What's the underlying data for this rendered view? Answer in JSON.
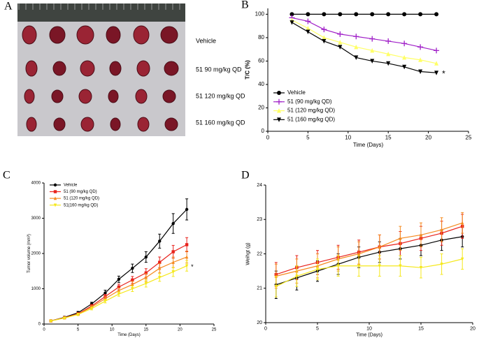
{
  "photo": {
    "panel": "A",
    "labels": [
      "Vehicle",
      "51 90 mg/kg QD",
      "51 120 mg/kg QD",
      "51 160 mg/kg QD"
    ]
  },
  "chart_data": [
    {
      "type": "line",
      "panel": "B",
      "xlabel": "Time (Days)",
      "ylabel": "T/C (%)",
      "x": [
        3,
        5,
        7,
        9,
        11,
        13,
        15,
        17,
        19,
        21
      ],
      "xlim": [
        0,
        25
      ],
      "xticks": [
        0,
        5,
        10,
        15,
        20,
        25
      ],
      "ylim": [
        0,
        105
      ],
      "yticks": [
        0,
        20,
        40,
        60,
        80,
        100
      ],
      "legend": "lower left",
      "annotation": "*",
      "series": [
        {
          "name": "Vehicle",
          "color": "#000000",
          "marker": "circle",
          "values": [
            100,
            100,
            100,
            100,
            100,
            100,
            100,
            100,
            100,
            100
          ]
        },
        {
          "name": "51 (90 mg/kg QD)",
          "color": "#a020c8",
          "marker": "plus",
          "values": [
            97,
            94,
            87,
            83,
            81,
            79,
            77,
            75,
            72,
            69
          ]
        },
        {
          "name": "51 (120 mg/kg QD)",
          "color": "#ffff66",
          "marker": "triangle-up",
          "values": [
            95,
            88,
            80,
            76,
            72,
            69,
            66,
            63,
            61,
            58
          ]
        },
        {
          "name": "51 (160 mg/kg QD)",
          "color": "#000000",
          "marker": "triangle-down",
          "values": [
            93,
            85,
            77,
            72,
            63,
            60,
            58,
            55,
            51,
            50
          ]
        }
      ]
    },
    {
      "type": "line",
      "panel": "C",
      "xlabel": "Time (Days)",
      "ylabel": "Tumor volume (mm³)",
      "x": [
        1,
        3,
        5,
        7,
        9,
        11,
        13,
        15,
        17,
        19,
        21
      ],
      "xlim": [
        0,
        25
      ],
      "xticks": [
        0,
        5,
        10,
        15,
        20,
        25
      ],
      "ylim": [
        0,
        4000
      ],
      "yticks": [
        0,
        1000,
        2000,
        3000,
        4000
      ],
      "legend": "upper left",
      "annotation": "*",
      "series": [
        {
          "name": "Vehicle",
          "color": "#000000",
          "marker": "circle",
          "values": [
            90,
            190,
            320,
            570,
            880,
            1270,
            1580,
            1900,
            2350,
            2850,
            3250
          ],
          "errors": [
            20,
            30,
            40,
            50,
            80,
            90,
            120,
            150,
            200,
            280,
            300
          ]
        },
        {
          "name": "51 (90 mg/kg QD)",
          "color": "#e8221c",
          "marker": "square",
          "values": [
            90,
            180,
            290,
            510,
            780,
            1050,
            1250,
            1450,
            1750,
            2050,
            2250
          ],
          "errors": [
            15,
            25,
            35,
            45,
            60,
            80,
            100,
            120,
            150,
            180,
            200
          ]
        },
        {
          "name": "51 (120 mg/kg QD)",
          "color": "#f58a1f",
          "marker": "triangle-up",
          "values": [
            90,
            175,
            280,
            480,
            720,
            950,
            1120,
            1320,
            1580,
            1750,
            1900
          ],
          "errors": [
            15,
            20,
            30,
            40,
            55,
            70,
            90,
            110,
            130,
            150,
            170
          ]
        },
        {
          "name": "51(160 mg/kg QD)",
          "color": "#f5e81c",
          "marker": "triangle-down",
          "values": [
            85,
            170,
            270,
            440,
            650,
            850,
            1000,
            1150,
            1320,
            1480,
            1650
          ],
          "errors": [
            15,
            20,
            30,
            40,
            50,
            60,
            80,
            100,
            110,
            130,
            150
          ]
        }
      ]
    },
    {
      "type": "line",
      "panel": "D",
      "xlabel": "Time (Days)",
      "ylabel": "Weihgt (g)",
      "x": [
        1,
        3,
        5,
        7,
        9,
        11,
        13,
        15,
        17,
        19
      ],
      "xlim": [
        0,
        20
      ],
      "xticks": [
        0,
        5,
        10,
        15,
        20
      ],
      "ylim": [
        20,
        24
      ],
      "yticks": [
        20,
        21,
        22,
        23,
        24
      ],
      "series": [
        {
          "color": "#000000",
          "marker": "circle",
          "values": [
            21.1,
            21.3,
            21.5,
            21.7,
            21.9,
            22.05,
            22.15,
            22.25,
            22.4,
            22.5
          ],
          "errors": [
            0.4,
            0.35,
            0.3,
            0.3,
            0.3,
            0.3,
            0.3,
            0.3,
            0.3,
            0.3
          ]
        },
        {
          "color": "#e8221c",
          "marker": "square",
          "values": [
            21.4,
            21.6,
            21.75,
            21.9,
            22.05,
            22.2,
            22.3,
            22.45,
            22.6,
            22.8
          ],
          "errors": [
            0.35,
            0.35,
            0.35,
            0.35,
            0.35,
            0.35,
            0.35,
            0.35,
            0.35,
            0.35
          ]
        },
        {
          "color": "#f58a1f",
          "marker": "triangle-up",
          "values": [
            21.35,
            21.5,
            21.65,
            21.85,
            22.0,
            22.2,
            22.45,
            22.55,
            22.7,
            22.9
          ],
          "errors": [
            0.35,
            0.35,
            0.35,
            0.35,
            0.35,
            0.35,
            0.35,
            0.35,
            0.35,
            0.3
          ]
        },
        {
          "color": "#f5e81c",
          "marker": "triangle-down",
          "values": [
            21.05,
            21.35,
            21.55,
            21.65,
            21.65,
            21.65,
            21.65,
            21.6,
            21.7,
            21.85
          ],
          "errors": [
            0.3,
            0.3,
            0.3,
            0.3,
            0.3,
            0.3,
            0.3,
            0.3,
            0.3,
            0.3
          ]
        }
      ]
    }
  ]
}
